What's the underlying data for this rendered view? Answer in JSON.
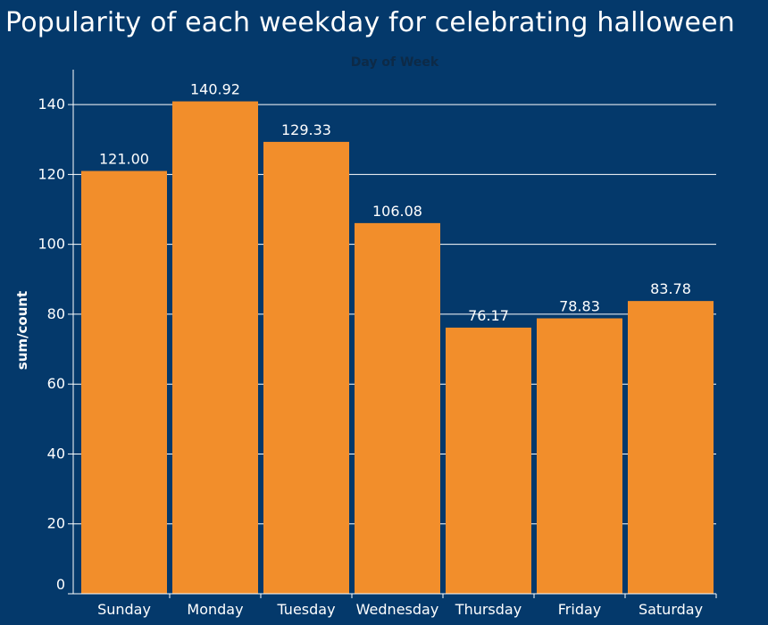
{
  "colors": {
    "background": "#04396B",
    "bar": "#F28E2B",
    "gridline": "#ffffff",
    "axis": "#ffffff",
    "text": "#ffffff",
    "x_axis_title": "#0d2a47"
  },
  "chart_data": {
    "type": "bar",
    "title": "Popularity of each weekday for celebrating halloween",
    "xlabel": "Day of Week",
    "ylabel": "sum/count",
    "categories": [
      "Sunday",
      "Monday",
      "Tuesday",
      "Wednesday",
      "Thursday",
      "Friday",
      "Saturday"
    ],
    "values": [
      121.0,
      140.92,
      129.33,
      106.08,
      76.17,
      78.83,
      83.78
    ],
    "value_labels": [
      "121.00",
      "140.92",
      "129.33",
      "106.08",
      "76.17",
      "78.83",
      "83.78"
    ],
    "ylim": [
      0,
      150
    ],
    "yticks": [
      0,
      20,
      40,
      60,
      80,
      100,
      120,
      140
    ],
    "grid": true,
    "legend": "none"
  }
}
